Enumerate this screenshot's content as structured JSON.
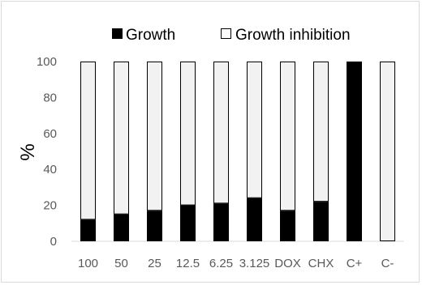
{
  "chart_data": {
    "type": "bar",
    "stacked": true,
    "categories": [
      "100",
      "50",
      "25",
      "12.5",
      "6.25",
      "3.125",
      "DOX",
      "CHX",
      "C+",
      "C-"
    ],
    "series": [
      {
        "name": "Growth",
        "color": "#000000",
        "values": [
          12,
          15,
          17,
          20,
          21,
          24,
          17,
          22,
          100,
          0
        ]
      },
      {
        "name": "Growth inhibition",
        "color": "#f2f2f2",
        "values": [
          88,
          85,
          83,
          80,
          79,
          76,
          83,
          78,
          0,
          100
        ]
      }
    ],
    "ylabel": "%",
    "ylim": [
      0,
      100
    ],
    "yticks": [
      "0",
      "20",
      "40",
      "60",
      "80",
      "100"
    ],
    "grid": false,
    "legend_position": "top"
  }
}
